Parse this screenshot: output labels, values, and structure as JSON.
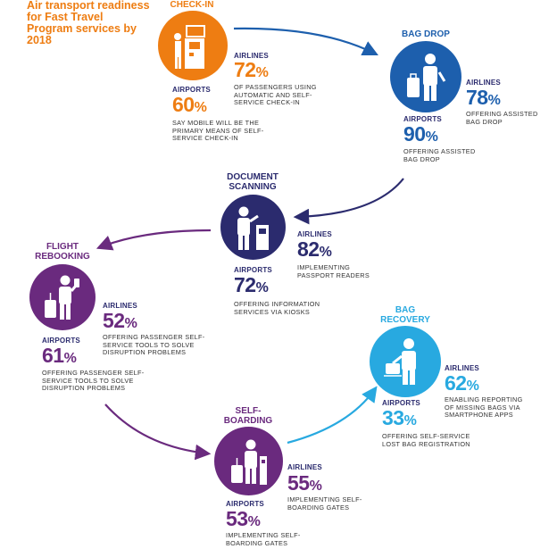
{
  "title": "Air transport readiness for Fast Travel Program services by 2018",
  "colors": {
    "orange": "#ee7d12",
    "blue": "#1d5fad",
    "navy": "#2b2b6e",
    "purple": "#6a2a7e",
    "cyan": "#28a9e0"
  },
  "stages": {
    "checkin": {
      "title": "CHECK-IN",
      "icon": "kiosk-icon",
      "airlines_label": "AIRLINES",
      "airlines_value": "72",
      "airlines_desc": "OF PASSENGERS USING AUTOMATIC AND SELF-SERVICE CHECK-IN",
      "airports_label": "AIRPORTS",
      "airports_value": "60",
      "airports_desc": "SAY MOBILE WILL BE THE PRIMARY MEANS OF SELF-SERVICE CHECK-IN"
    },
    "bagdrop": {
      "title": "BAG DROP",
      "icon": "bag-drop-icon",
      "airlines_label": "AIRLINES",
      "airlines_value": "78",
      "airlines_desc": "OFFERING ASSISTED BAG DROP",
      "airports_label": "AIRPORTS",
      "airports_value": "90",
      "airports_desc": "OFFERING ASSISTED BAG DROP"
    },
    "docscan": {
      "title_line1": "DOCUMENT",
      "title_line2": "SCANNING",
      "icon": "passport-reader-icon",
      "airlines_label": "AIRLINES",
      "airlines_value": "82",
      "airlines_desc": "IMPLEMENTING PASSPORT READERS",
      "airports_label": "AIRPORTS",
      "airports_value": "72",
      "airports_desc": "OFFERING INFORMATION SERVICES VIA KIOSKS"
    },
    "rebooking": {
      "title_line1": "FLIGHT",
      "title_line2": "REBOOKING",
      "icon": "traveler-phone-icon",
      "airlines_label": "AIRLINES",
      "airlines_value": "52",
      "airlines_desc": "OFFERING PASSENGER SELF-SERVICE TOOLS TO SOLVE DISRUPTION PROBLEMS",
      "airports_label": "AIRPORTS",
      "airports_value": "61",
      "airports_desc": "OFFERING PASSENGER SELF-SERVICE TOOLS TO SOLVE DISRUPTION PROBLEMS"
    },
    "boarding": {
      "title_line1": "SELF-",
      "title_line2": "BOARDING",
      "icon": "boarding-gate-icon",
      "airlines_label": "AIRLINES",
      "airlines_value": "55",
      "airlines_desc": "IMPLEMENTING SELF-BOARDING GATES",
      "airports_label": "AIRPORTS",
      "airports_value": "53",
      "airports_desc": "IMPLEMENTING SELF-BOARDING GATES"
    },
    "recovery": {
      "title_line1": "BAG",
      "title_line2": "RECOVERY",
      "icon": "bag-recovery-icon",
      "airlines_label": "AIRLINES",
      "airlines_value": "62",
      "airlines_desc": "ENABLING REPORTING OF MISSING BAGS VIA SMARTPHONE APPS",
      "airports_label": "AIRPORTS",
      "airports_value": "33",
      "airports_desc": "OFFERING SELF-SERVICE LOST BAG REGISTRATION"
    }
  },
  "percent_sign": "%"
}
